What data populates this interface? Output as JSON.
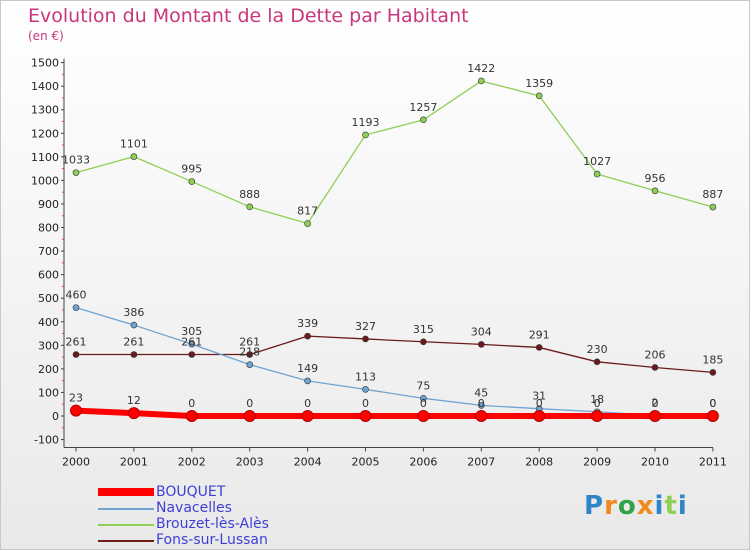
{
  "title": "Evolution du Montant de la Dette par Habitant",
  "subtitle": "(en €)",
  "logo": "Proxiti",
  "chart_data": {
    "type": "line",
    "title": "Evolution du Montant de la Dette par Habitant",
    "subtitle": "(en €)",
    "xlabel": "",
    "ylabel": "",
    "x": [
      "2000",
      "2001",
      "2002",
      "2003",
      "2004",
      "2005",
      "2006",
      "2007",
      "2008",
      "2009",
      "2010",
      "2011"
    ],
    "ylim": [
      -100,
      1500
    ],
    "yticks": [
      -100,
      0,
      100,
      200,
      300,
      400,
      500,
      600,
      700,
      800,
      900,
      1000,
      1100,
      1200,
      1300,
      1400,
      1500
    ],
    "grid": false,
    "legend_position": "bottom-left",
    "series": [
      {
        "name": "BOUQUET",
        "color": "#ff0000",
        "values": [
          23,
          12,
          0,
          0,
          0,
          0,
          0,
          0,
          0,
          0,
          0,
          0
        ],
        "labels": [
          "23",
          "12",
          "0",
          "0",
          "0",
          "0",
          "0",
          "0",
          "0",
          "0",
          "0",
          "0"
        ]
      },
      {
        "name": "Navacelles",
        "color": "#6fa3d2",
        "values": [
          460,
          386,
          305,
          218,
          149,
          113,
          75,
          45,
          31,
          18,
          2,
          0
        ],
        "labels": [
          "460",
          "386",
          "305",
          "218",
          "149",
          "113",
          "75",
          "45",
          "31",
          "18",
          "2",
          "0"
        ]
      },
      {
        "name": "Brouzet-lès-Alès",
        "color": "#8ecf55",
        "values": [
          1033,
          1101,
          995,
          888,
          817,
          1193,
          1257,
          1422,
          1359,
          1027,
          956,
          887
        ],
        "labels": [
          "1033",
          "1101",
          "995",
          "888",
          "817",
          "1193",
          "1257",
          "1422",
          "1359",
          "1027",
          "956",
          "887"
        ]
      },
      {
        "name": "Fons-sur-Lussan",
        "color": "#6b1b1b",
        "values": [
          261,
          261,
          261,
          261,
          339,
          327,
          315,
          304,
          291,
          230,
          206,
          185
        ],
        "labels": [
          "261",
          "261",
          "261",
          "261",
          "339",
          "327",
          "315",
          "304",
          "291",
          "230",
          "206",
          "185"
        ]
      }
    ]
  }
}
